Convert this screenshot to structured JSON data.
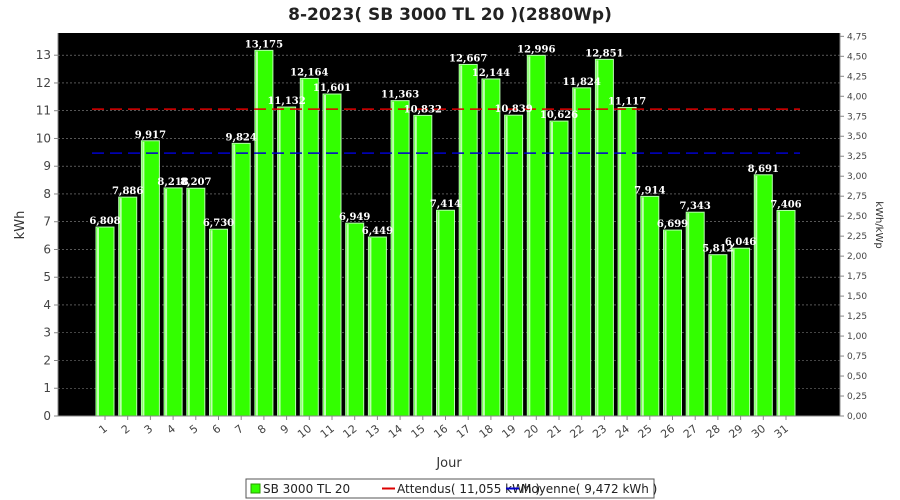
{
  "chart_data": {
    "type": "bar",
    "title": "8-2023( SB 3000 TL 20 )(2880Wp)",
    "xlabel": "Jour",
    "ylabel": "kWh",
    "ylabel_right": "kWh/kWp",
    "categories": [
      "1",
      "2",
      "3",
      "4",
      "5",
      "6",
      "7",
      "8",
      "9",
      "10",
      "11",
      "12",
      "13",
      "14",
      "15",
      "16",
      "17",
      "18",
      "19",
      "20",
      "21",
      "22",
      "23",
      "24",
      "25",
      "26",
      "27",
      "28",
      "29",
      "30",
      "31"
    ],
    "series": [
      {
        "name": "SB 3000 TL 20",
        "values": [
          6.808,
          7.886,
          9.917,
          8.218,
          8.207,
          6.73,
          9.824,
          13.175,
          11.132,
          12.164,
          11.601,
          6.949,
          6.449,
          11.363,
          10.832,
          7.414,
          12.667,
          12.144,
          10.839,
          12.996,
          10.626,
          11.824,
          12.851,
          11.117,
          7.914,
          6.699,
          7.343,
          5.812,
          6.046,
          8.691,
          7.406
        ],
        "labels": [
          "6,808",
          "7,886",
          "9,917",
          "8,218",
          "8,207",
          "6,730",
          "9,824",
          "13,175",
          "11,132",
          "12,164",
          "11,601",
          "6,949",
          "6,449",
          "11,363",
          "10,832",
          "7,414",
          "12,667",
          "12,144",
          "10,839",
          "12,996",
          "10,626",
          "11,824",
          "12,851",
          "11,117",
          "7,914",
          "6,699",
          "7,343",
          "5,812",
          "6,046",
          "8,691",
          "7,406"
        ],
        "color": "#33ff00"
      }
    ],
    "reference_lines": [
      {
        "name": "Attendus( 11,055 kWh )",
        "value": 11.055,
        "color": "#dd0000"
      },
      {
        "name": "Moyenne( 9,472 kWh )",
        "value": 9.472,
        "color": "#0000cc"
      }
    ],
    "ylim": [
      0,
      13.8
    ],
    "yticks": [
      0,
      1,
      2,
      3,
      4,
      5,
      6,
      7,
      8,
      9,
      10,
      11,
      12,
      13
    ],
    "yticks_right": [
      "0,00",
      "0,25",
      "0,50",
      "0,75",
      "1,00",
      "1,25",
      "1,50",
      "1,75",
      "2,00",
      "2,25",
      "2,50",
      "2,75",
      "3,00",
      "3,25",
      "3,50",
      "3,75",
      "4,00",
      "4,25",
      "4,50",
      "4,75"
    ],
    "yticks_right_values": [
      0,
      0.25,
      0.5,
      0.75,
      1.0,
      1.25,
      1.5,
      1.75,
      2.0,
      2.25,
      2.5,
      2.75,
      3.0,
      3.25,
      3.5,
      3.75,
      4.0,
      4.25,
      4.5,
      4.75
    ],
    "kwp": 2.88,
    "grid": true,
    "plot_background": "#000000",
    "legend_position": "bottom"
  }
}
